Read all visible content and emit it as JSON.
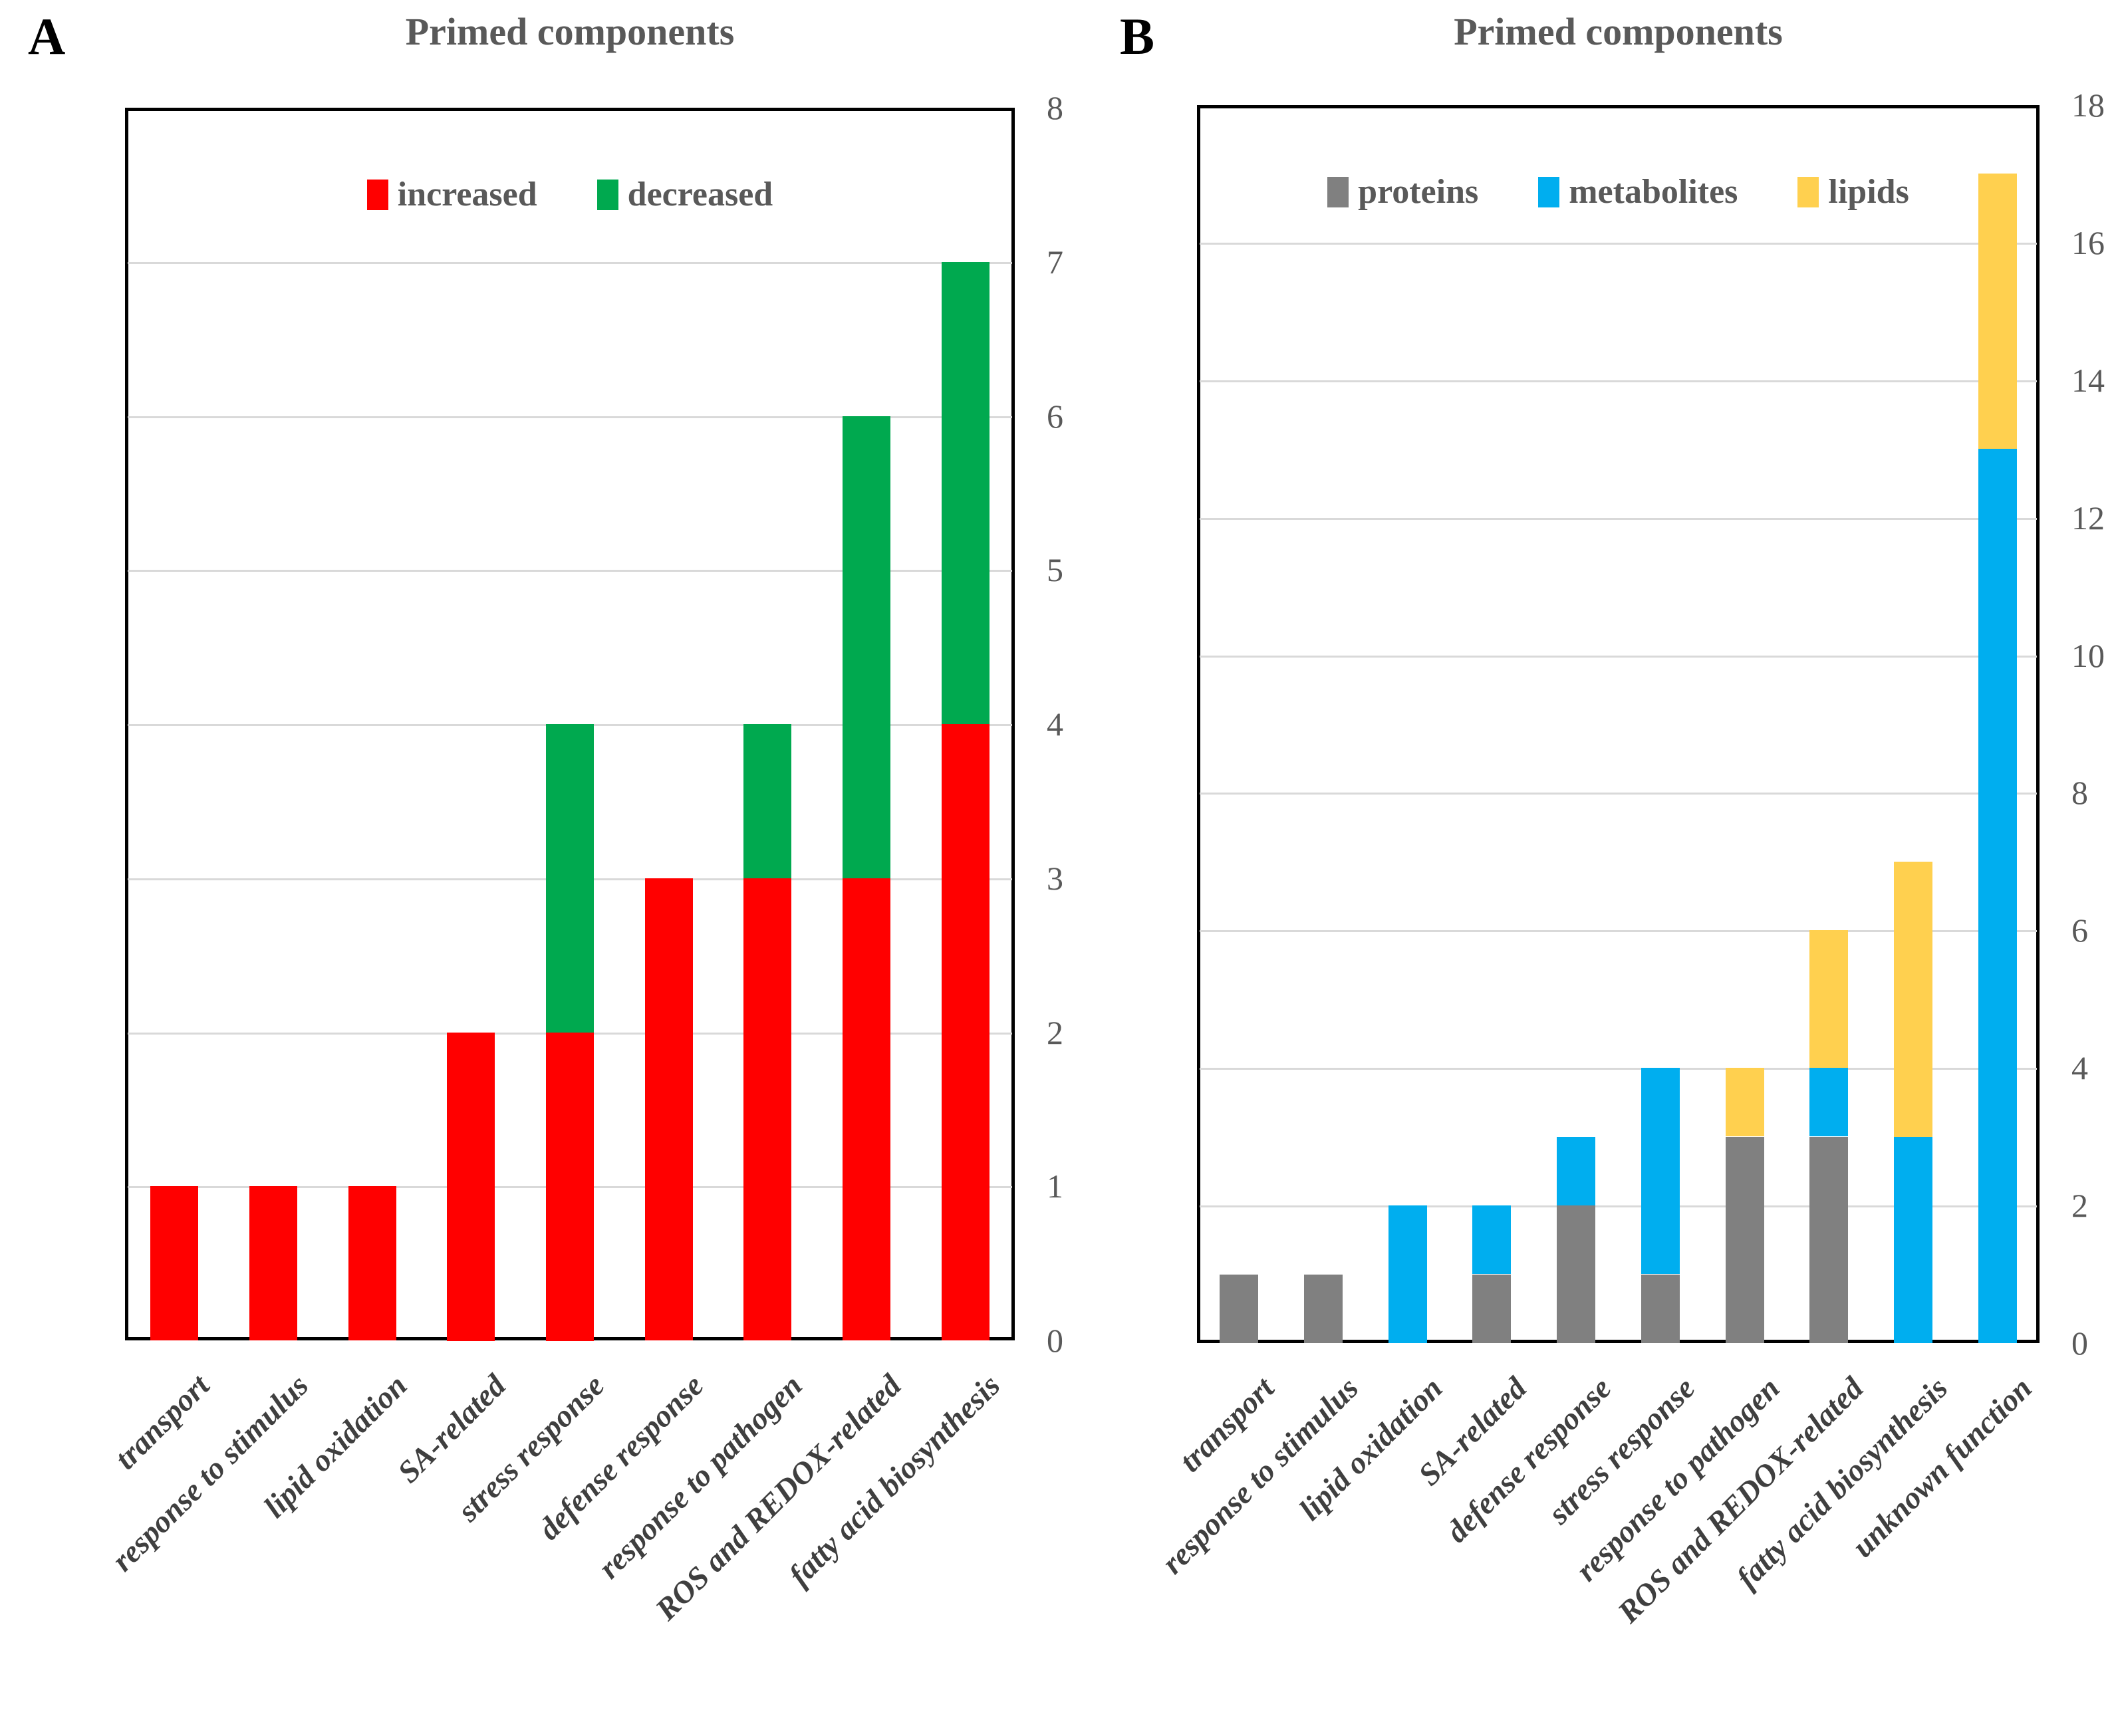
{
  "figure_background": "#ffffff",
  "text_colors": {
    "title": "#595959",
    "axis_ticks": "#595959",
    "category_labels": "#3f3f3f",
    "panel_letter": "#000000"
  },
  "chart_data": [
    {
      "id": "A",
      "panel_label": "A",
      "title": "Primed components",
      "type": "bar",
      "stacked": true,
      "grid": true,
      "legend_position": "top-inside",
      "y_axis_side": "right",
      "ylim": [
        0,
        8
      ],
      "yticks": [
        0,
        1,
        2,
        3,
        4,
        5,
        6,
        7,
        8
      ],
      "categories": [
        "transport",
        "response to stimulus",
        "lipid oxidation",
        "SA-related",
        "stress response",
        "defense response",
        "response to pathogen",
        "ROS and REDOX-related",
        "fatty acid biosynthesis"
      ],
      "series": [
        {
          "name": "increased",
          "color": "#ff0000",
          "values": [
            1,
            1,
            1,
            2,
            2,
            3,
            3,
            3,
            4
          ]
        },
        {
          "name": "decreased",
          "color": "#00a94f",
          "values": [
            0,
            0,
            0,
            0,
            2,
            0,
            1,
            3,
            3
          ]
        }
      ]
    },
    {
      "id": "B",
      "panel_label": "B",
      "title": "Primed components",
      "type": "bar",
      "stacked": true,
      "grid": true,
      "legend_position": "top-inside",
      "y_axis_side": "right",
      "ylim": [
        0,
        18
      ],
      "yticks": [
        0,
        2,
        4,
        6,
        8,
        10,
        12,
        14,
        16,
        18
      ],
      "categories": [
        "transport",
        "response to stimulus",
        "lipid oxidation",
        "SA-related",
        "defense response",
        "stress response",
        "response to pathogen",
        "ROS and REDOX-related",
        "fatty acid biosynthesis",
        "unknown function"
      ],
      "series": [
        {
          "name": "proteins",
          "color": "#808080",
          "values": [
            1,
            1,
            0,
            1,
            2,
            1,
            3,
            3,
            0,
            0
          ]
        },
        {
          "name": "metabolites",
          "color": "#00aeef",
          "values": [
            0,
            0,
            2,
            1,
            1,
            3,
            0,
            1,
            3,
            13
          ]
        },
        {
          "name": "lipids",
          "color": "#ffd04f",
          "values": [
            0,
            0,
            0,
            0,
            0,
            0,
            1,
            2,
            4,
            4
          ]
        }
      ]
    }
  ],
  "gridline_color": "#d9d9d9",
  "plot_border_color": "#000000"
}
